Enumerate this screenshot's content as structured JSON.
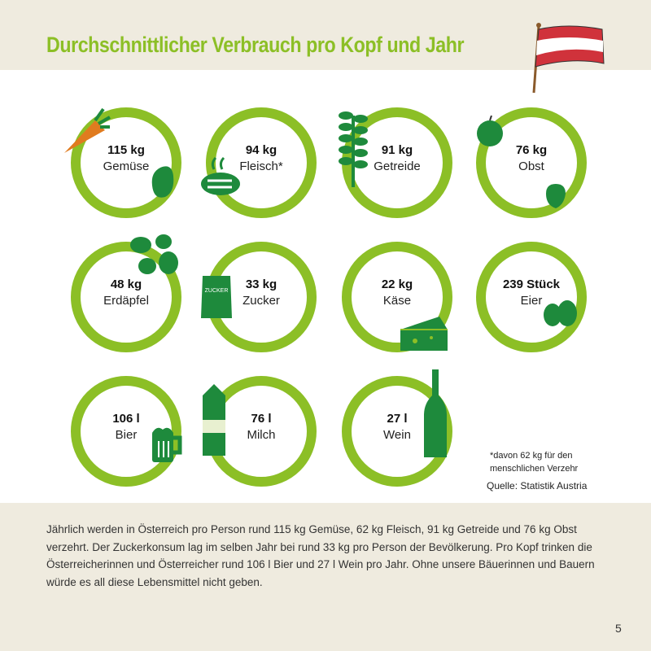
{
  "title": "Durchschnittlicher Verbrauch pro Kopf und Jahr",
  "colors": {
    "ring": "#8cbf26",
    "icon": "#1e8a3c",
    "background": "#efebdf"
  },
  "items": [
    {
      "value": "115 kg",
      "label": "Gemüse",
      "icon": "carrot-pepper-icon"
    },
    {
      "value": "94 kg",
      "label": "Fleisch*",
      "icon": "steak-icon"
    },
    {
      "value": "91 kg",
      "label": "Getreide",
      "icon": "wheat-icon"
    },
    {
      "value": "76 kg",
      "label": "Obst",
      "icon": "apple-strawberry-icon"
    },
    {
      "value": "48 kg",
      "label": "Erdäpfel",
      "icon": "potato-icon"
    },
    {
      "value": "33 kg",
      "label": "Zucker",
      "icon": "sugar-bag-icon",
      "icon_text": "ZUCKER"
    },
    {
      "value": "22 kg",
      "label": "Käse",
      "icon": "cheese-icon"
    },
    {
      "value": "239 Stück",
      "label": "Eier",
      "icon": "egg-icon"
    },
    {
      "value": "106 l",
      "label": "Bier",
      "icon": "beer-mug-icon"
    },
    {
      "value": "76 l",
      "label": "Milch",
      "icon": "milk-carton-icon"
    },
    {
      "value": "27 l",
      "label": "Wein",
      "icon": "wine-bottle-icon"
    }
  ],
  "footnote_1": "*davon 62 kg für den",
  "footnote_2": "menschlichen Verzehr",
  "source": "Quelle: Statistik Austria",
  "body": "Jährlich werden in Österreich pro Person rund 115 kg Gemüse, 62 kg Fleisch, 91 kg Getreide und 76 kg Obst verzehrt. Der Zuckerkonsum lag im selben Jahr bei rund 33 kg pro Person der Bevölkerung. Pro Kopf trinken die Österreicherinnen und Österreicher rund 106 l Bier und 27 l Wein pro Jahr. Ohne unsere Bäuerinnen und Bauern würde es all diese Lebensmittel nicht geben.",
  "page_number": "5"
}
